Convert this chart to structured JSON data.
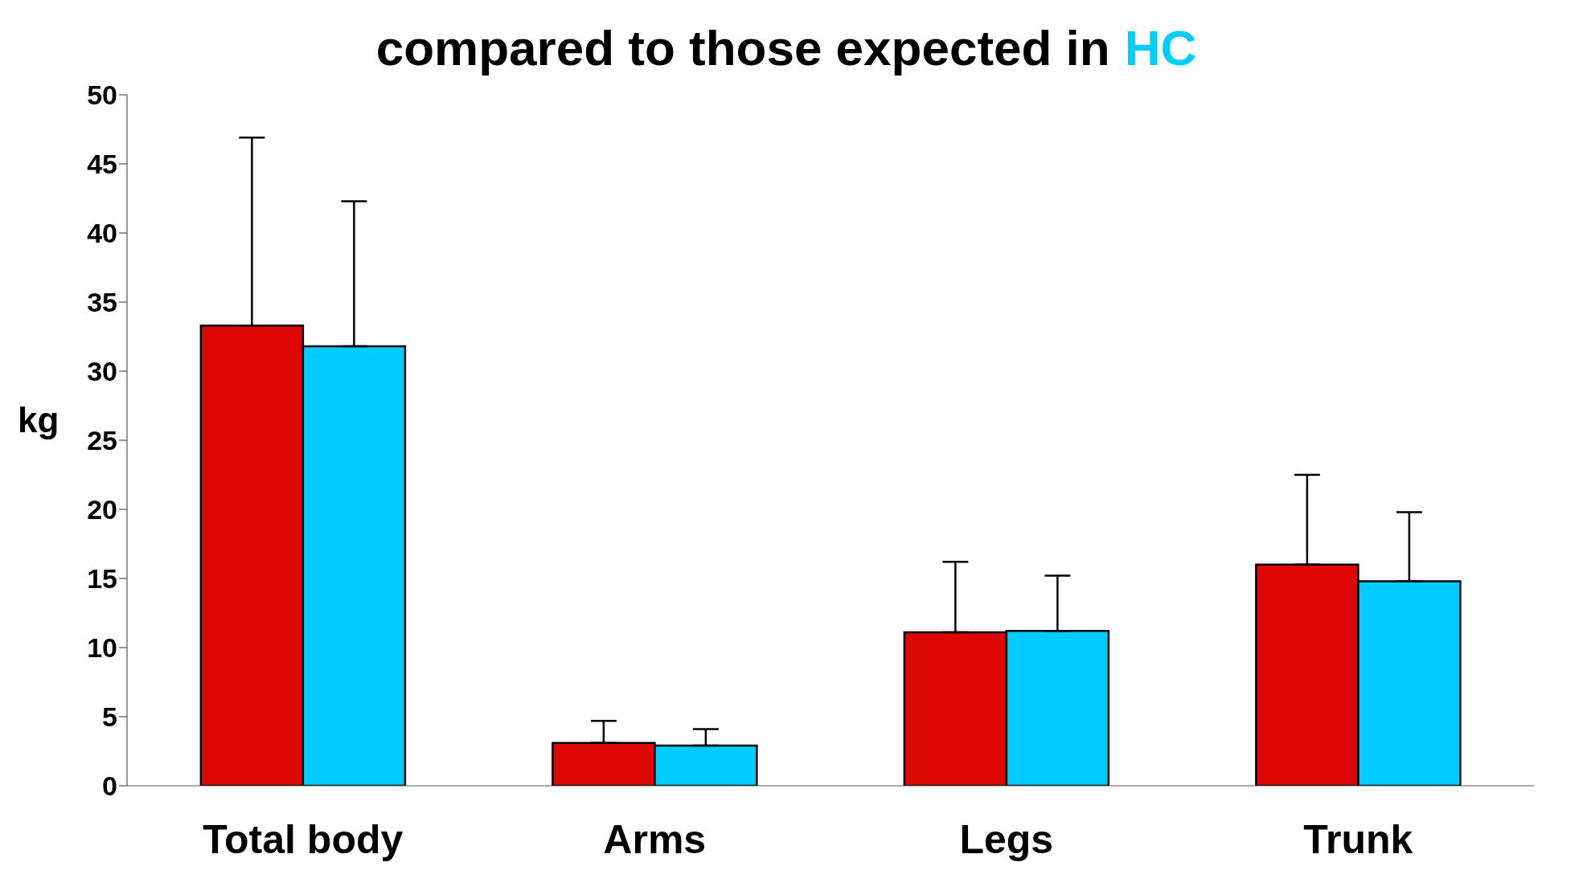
{
  "chart_data": {
    "type": "bar",
    "title": "compared to those expected in",
    "annotations": [
      "HC"
    ],
    "ylabel": "kg",
    "categories": [
      "Total body",
      "Arms",
      "Legs",
      "Trunk"
    ],
    "series": [
      {
        "color": "#dd0806",
        "values": [
          33.3,
          3.1,
          11.1,
          16.0
        ],
        "errors": [
          [
            33.3,
            46.9
          ],
          [
            3.1,
            4.7
          ],
          [
            11.1,
            16.2
          ],
          [
            16.0,
            22.5
          ]
        ]
      },
      {
        "color": "#00ccff",
        "values": [
          31.8,
          2.9,
          11.2,
          14.8
        ],
        "errors": [
          [
            31.8,
            42.3
          ],
          [
            2.9,
            4.1
          ],
          [
            11.2,
            15.2
          ],
          [
            14.8,
            19.8
          ]
        ]
      }
    ],
    "ylim": [
      0,
      50
    ],
    "yticks": [
      0,
      5,
      10,
      15,
      20,
      25,
      30,
      35,
      40,
      45,
      50
    ],
    "grid": false,
    "legend": false
  }
}
